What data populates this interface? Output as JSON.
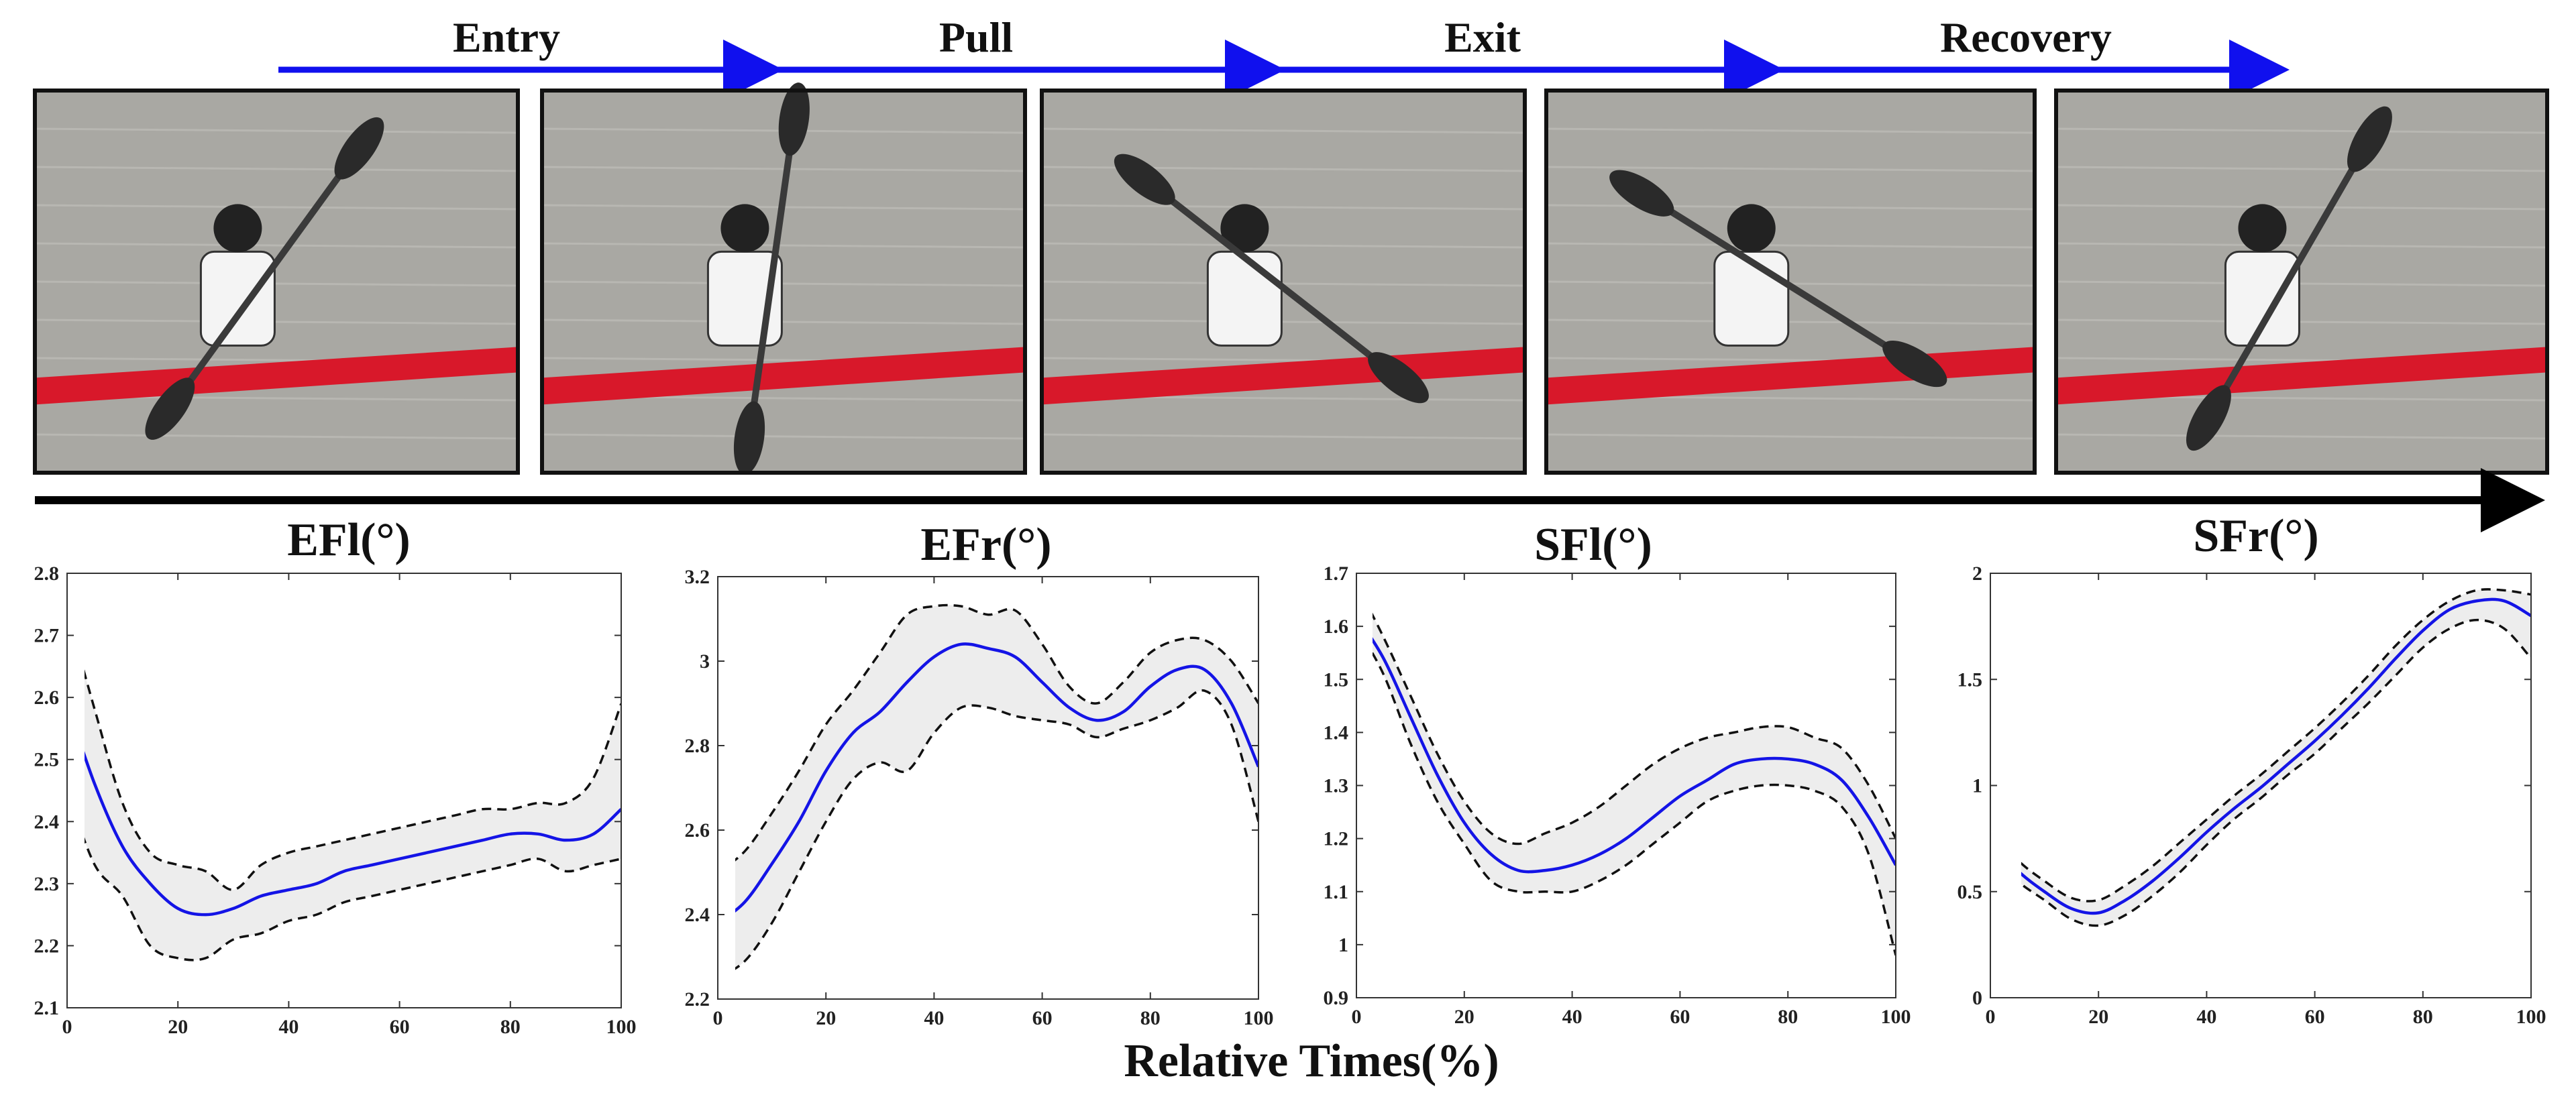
{
  "phases": [
    {
      "label": "Entry"
    },
    {
      "label": "Pull"
    },
    {
      "label": "Exit"
    },
    {
      "label": "Recovery"
    }
  ],
  "colors": {
    "phase_arrow": "#1010ee",
    "timeline_arrow": "#000000",
    "mean_line": "#1414e6",
    "band_fill": "#ededed",
    "band_edge": "#111111",
    "water": "#a9a8a3",
    "kayak": "#d8182a",
    "frame_border": "#111111"
  },
  "photos": [
    {
      "name": "entry-frame",
      "paddle_angle": -36
    },
    {
      "name": "pull-frame",
      "paddle_angle": -8
    },
    {
      "name": "exit-frame",
      "paddle_angle": 52
    },
    {
      "name": "recovery-exit-frame",
      "paddle_angle": 58
    },
    {
      "name": "recovery-frame",
      "paddle_angle": -30
    }
  ],
  "shared_xlabel": "Relative Times(%)",
  "chart_data": [
    {
      "type": "line",
      "title": "EFl(°)",
      "xlim": [
        0,
        100
      ],
      "ylim": [
        2.1,
        2.8
      ],
      "xticks": [
        0,
        20,
        40,
        60,
        80,
        100
      ],
      "yticks": [
        2.1,
        2.2,
        2.3,
        2.4,
        2.5,
        2.6,
        2.7,
        2.8
      ],
      "x": [
        0,
        5,
        10,
        15,
        20,
        25,
        30,
        35,
        40,
        45,
        50,
        55,
        60,
        65,
        70,
        75,
        80,
        85,
        90,
        95,
        100
      ],
      "series": [
        {
          "role": "mean",
          "values": [
            2.59,
            2.46,
            2.36,
            2.3,
            2.26,
            2.25,
            2.26,
            2.28,
            2.29,
            2.3,
            2.32,
            2.33,
            2.34,
            2.35,
            2.36,
            2.37,
            2.38,
            2.38,
            2.37,
            2.38,
            2.42
          ]
        },
        {
          "role": "upper",
          "values": [
            2.74,
            2.58,
            2.43,
            2.35,
            2.33,
            2.32,
            2.29,
            2.33,
            2.35,
            2.36,
            2.37,
            2.38,
            2.39,
            2.4,
            2.41,
            2.42,
            2.42,
            2.43,
            2.43,
            2.47,
            2.59
          ]
        },
        {
          "role": "lower",
          "values": [
            2.45,
            2.33,
            2.28,
            2.2,
            2.18,
            2.18,
            2.21,
            2.22,
            2.24,
            2.25,
            2.27,
            2.28,
            2.29,
            2.3,
            2.31,
            2.32,
            2.33,
            2.34,
            2.32,
            2.33,
            2.34
          ]
        }
      ]
    },
    {
      "type": "line",
      "title": "EFr(°)",
      "xlim": [
        0,
        100
      ],
      "ylim": [
        2.2,
        3.2
      ],
      "xticks": [
        0,
        20,
        40,
        60,
        80,
        100
      ],
      "yticks": [
        2.2,
        2.4,
        2.6,
        2.8,
        3,
        3.2
      ],
      "x": [
        0,
        5,
        10,
        15,
        20,
        25,
        30,
        35,
        40,
        45,
        50,
        55,
        60,
        65,
        70,
        75,
        80,
        85,
        90,
        95,
        100
      ],
      "series": [
        {
          "role": "mean",
          "values": [
            2.38,
            2.43,
            2.52,
            2.62,
            2.74,
            2.83,
            2.88,
            2.95,
            3.01,
            3.04,
            3.03,
            3.01,
            2.95,
            2.89,
            2.86,
            2.88,
            2.94,
            2.98,
            2.98,
            2.9,
            2.75
          ]
        },
        {
          "role": "upper",
          "values": [
            2.5,
            2.55,
            2.64,
            2.74,
            2.85,
            2.93,
            3.02,
            3.11,
            3.13,
            3.13,
            3.11,
            3.12,
            3.04,
            2.94,
            2.9,
            2.95,
            3.02,
            3.05,
            3.05,
            3.0,
            2.9
          ]
        },
        {
          "role": "lower",
          "values": [
            2.25,
            2.29,
            2.38,
            2.5,
            2.62,
            2.72,
            2.76,
            2.74,
            2.83,
            2.89,
            2.89,
            2.87,
            2.86,
            2.85,
            2.82,
            2.84,
            2.86,
            2.89,
            2.93,
            2.85,
            2.62
          ]
        }
      ]
    },
    {
      "type": "line",
      "title": "SFl(°)",
      "xlim": [
        0,
        100
      ],
      "ylim": [
        0.9,
        1.7
      ],
      "xticks": [
        0,
        20,
        40,
        60,
        80,
        100
      ],
      "yticks": [
        0.9,
        1,
        1.1,
        1.2,
        1.3,
        1.4,
        1.5,
        1.6,
        1.7
      ],
      "x": [
        0,
        5,
        10,
        15,
        20,
        25,
        30,
        35,
        40,
        45,
        50,
        55,
        60,
        65,
        70,
        75,
        80,
        85,
        90,
        95,
        100
      ],
      "series": [
        {
          "role": "mean",
          "values": [
            1.62,
            1.54,
            1.43,
            1.32,
            1.23,
            1.17,
            1.14,
            1.14,
            1.15,
            1.17,
            1.2,
            1.24,
            1.28,
            1.31,
            1.34,
            1.35,
            1.35,
            1.34,
            1.31,
            1.24,
            1.15
          ]
        },
        {
          "role": "upper",
          "values": [
            1.68,
            1.58,
            1.47,
            1.36,
            1.27,
            1.21,
            1.19,
            1.21,
            1.23,
            1.26,
            1.3,
            1.34,
            1.37,
            1.39,
            1.4,
            1.41,
            1.41,
            1.39,
            1.37,
            1.3,
            1.2
          ]
        },
        {
          "role": "lower",
          "values": [
            1.6,
            1.51,
            1.38,
            1.27,
            1.19,
            1.12,
            1.1,
            1.1,
            1.1,
            1.12,
            1.15,
            1.19,
            1.23,
            1.27,
            1.29,
            1.3,
            1.3,
            1.29,
            1.26,
            1.17,
            0.98
          ]
        }
      ]
    },
    {
      "type": "line",
      "title": "SFr(°)",
      "xlim": [
        0,
        100
      ],
      "ylim": [
        0,
        2
      ],
      "xticks": [
        0,
        20,
        40,
        60,
        80,
        100
      ],
      "yticks": [
        0,
        0.5,
        1,
        1.5,
        2
      ],
      "x": [
        0,
        5,
        10,
        15,
        20,
        25,
        30,
        35,
        40,
        45,
        50,
        55,
        60,
        65,
        70,
        75,
        80,
        85,
        90,
        95,
        100
      ],
      "series": [
        {
          "role": "mean",
          "values": [
            0.74,
            0.6,
            0.5,
            0.42,
            0.4,
            0.46,
            0.55,
            0.66,
            0.78,
            0.89,
            0.99,
            1.1,
            1.21,
            1.33,
            1.46,
            1.6,
            1.73,
            1.83,
            1.87,
            1.87,
            1.8
          ]
        },
        {
          "role": "upper",
          "values": [
            0.8,
            0.65,
            0.55,
            0.47,
            0.46,
            0.53,
            0.62,
            0.73,
            0.84,
            0.95,
            1.05,
            1.16,
            1.27,
            1.39,
            1.52,
            1.66,
            1.78,
            1.87,
            1.92,
            1.92,
            1.9
          ]
        },
        {
          "role": "lower",
          "values": [
            0.68,
            0.55,
            0.46,
            0.37,
            0.34,
            0.39,
            0.48,
            0.59,
            0.72,
            0.84,
            0.94,
            1.05,
            1.15,
            1.27,
            1.39,
            1.52,
            1.65,
            1.74,
            1.78,
            1.74,
            1.6
          ]
        }
      ]
    }
  ]
}
